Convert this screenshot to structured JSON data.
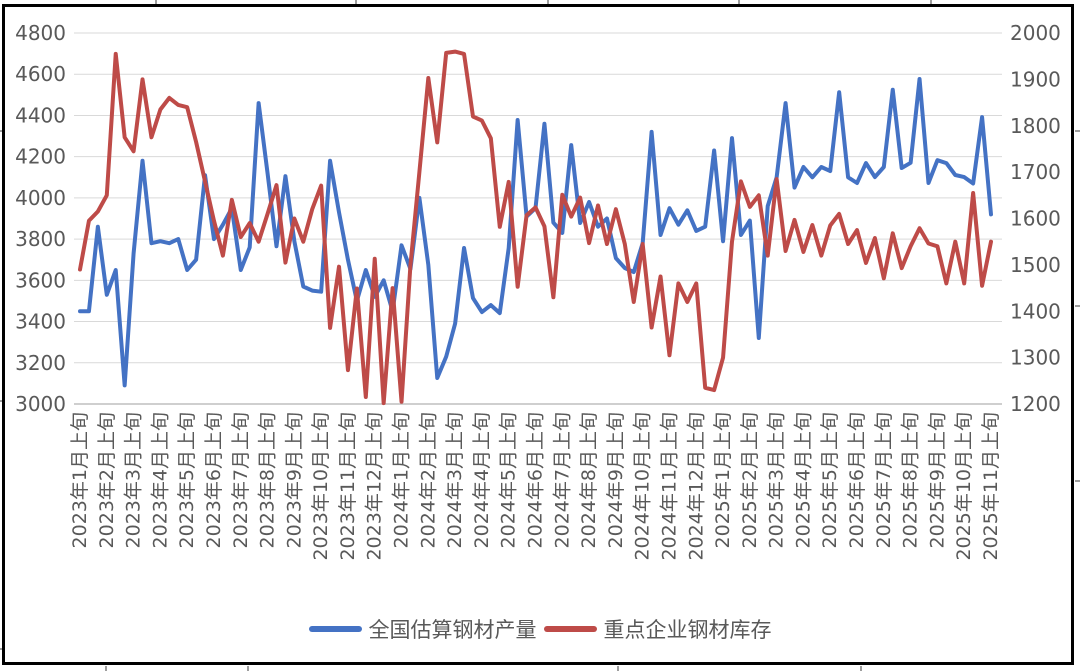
{
  "chart_data": {
    "type": "line",
    "title": "",
    "grid": "horizontal",
    "legend_position": "bottom",
    "points_per_label": 3,
    "left_axis": {
      "min": 3000,
      "max": 4800,
      "step": 200,
      "ticks": [
        "4800",
        "4600",
        "4400",
        "4200",
        "4000",
        "3800",
        "3600",
        "3400",
        "3200",
        "3000"
      ]
    },
    "right_axis": {
      "min": 1200,
      "max": 2000,
      "step": 100,
      "ticks": [
        "2000",
        "1900",
        "1800",
        "1700",
        "1600",
        "1500",
        "1400",
        "1300",
        "1200"
      ]
    },
    "x_tick_labels": [
      "2023年1月上旬",
      "2023年2月上旬",
      "2023年3月上旬",
      "2023年4月上旬",
      "2023年5月上旬",
      "2023年6月上旬",
      "2023年7月上旬",
      "2023年8月上旬",
      "2023年9月上旬",
      "2023年10月上旬",
      "2023年11月上旬",
      "2023年12月上旬",
      "2024年1月上旬",
      "2024年2月上旬",
      "2024年3月上旬",
      "2024年4月上旬",
      "2024年5月上旬",
      "2024年6月上旬",
      "2024年7月上旬",
      "2024年8月上旬",
      "2024年9月上旬",
      "2024年10月上旬",
      "2024年11月上旬",
      "2024年12月上旬",
      "2025年1月上旬",
      "2025年2月上旬",
      "2025年3月上旬",
      "2025年4月上旬",
      "2025年5月上旬",
      "2025年6月上旬",
      "2025年7月上旬",
      "2025年8月上旬",
      "2025年9月上旬",
      "2025年10月上旬",
      "2025年11月上旬"
    ],
    "series": [
      {
        "id": "production",
        "name": "全国估算钢材产量",
        "axis": "left",
        "color": "#4472C4",
        "values": [
          3450,
          3450,
          3860,
          3530,
          3650,
          3090,
          3730,
          4180,
          3780,
          3790,
          3780,
          3800,
          3650,
          3700,
          4110,
          3800,
          3870,
          3950,
          3650,
          3760,
          4460,
          4120,
          3765,
          4105,
          3790,
          3570,
          3550,
          3545,
          4180,
          3930,
          3700,
          3500,
          3650,
          3520,
          3600,
          3450,
          3770,
          3655,
          4000,
          3675,
          3126,
          3230,
          3390,
          3757,
          3514,
          3446,
          3480,
          3441,
          3757,
          4378,
          3909,
          3950,
          4360,
          3880,
          3830,
          4256,
          3878,
          3980,
          3860,
          3900,
          3708,
          3660,
          3640,
          3780,
          4320,
          3820,
          3950,
          3870,
          3940,
          3840,
          3860,
          4230,
          3790,
          4290,
          3820,
          3890,
          3320,
          3960,
          4100,
          4460,
          4050,
          4150,
          4100,
          4150,
          4130,
          4513,
          4100,
          4072,
          4169,
          4101,
          4150,
          4525,
          4145,
          4170,
          4577,
          4072,
          4183,
          4169,
          4111,
          4101,
          4070,
          4392,
          3920
        ]
      },
      {
        "id": "inventory",
        "name": "重点企业钢材库存",
        "axis": "right",
        "color": "#BE4B48",
        "values": [
          1490,
          1595,
          1615,
          1650,
          1955,
          1775,
          1745,
          1900,
          1775,
          1835,
          1860,
          1845,
          1840,
          1765,
          1680,
          1595,
          1520,
          1640,
          1560,
          1590,
          1550,
          1610,
          1672,
          1505,
          1600,
          1550,
          1620,
          1671,
          1364,
          1496,
          1273,
          1449,
          1215,
          1513,
          1202,
          1450,
          1205,
          1500,
          1700,
          1903,
          1764,
          1957,
          1960,
          1955,
          1820,
          1811,
          1773,
          1582,
          1679,
          1453,
          1607,
          1624,
          1583,
          1430,
          1651,
          1604,
          1645,
          1547,
          1628,
          1545,
          1620,
          1545,
          1420,
          1545,
          1365,
          1475,
          1305,
          1460,
          1420,
          1460,
          1235,
          1230,
          1300,
          1550,
          1680,
          1625,
          1650,
          1520,
          1685,
          1530,
          1597,
          1528,
          1586,
          1520,
          1585,
          1610,
          1545,
          1575,
          1504,
          1558,
          1471,
          1568,
          1493,
          1540,
          1579,
          1546,
          1540,
          1460,
          1550,
          1460,
          1655,
          1455,
          1550
        ]
      }
    ]
  }
}
